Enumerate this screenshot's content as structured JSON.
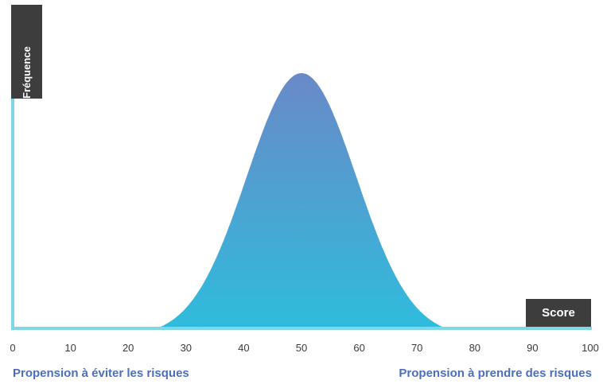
{
  "chart_data": {
    "type": "area",
    "distribution": "normal",
    "mean": 50,
    "sd": 9.5,
    "support": [
      25,
      75
    ],
    "x_ticks": [
      0,
      10,
      20,
      30,
      40,
      50,
      60,
      70,
      80,
      90,
      100
    ],
    "xlim": [
      0,
      100
    ],
    "xlabel": "Score",
    "ylabel": "Fréquence",
    "left_caption": "Propension à éviter les risques",
    "right_caption": "Propension à prendre des risques",
    "colors": {
      "fill_top": "#6a89c8",
      "fill_bottom": "#2fbcdc",
      "axis": "#7fd6e6",
      "label_box": "#3d3d3d",
      "caption": "#4b6fbd"
    }
  }
}
